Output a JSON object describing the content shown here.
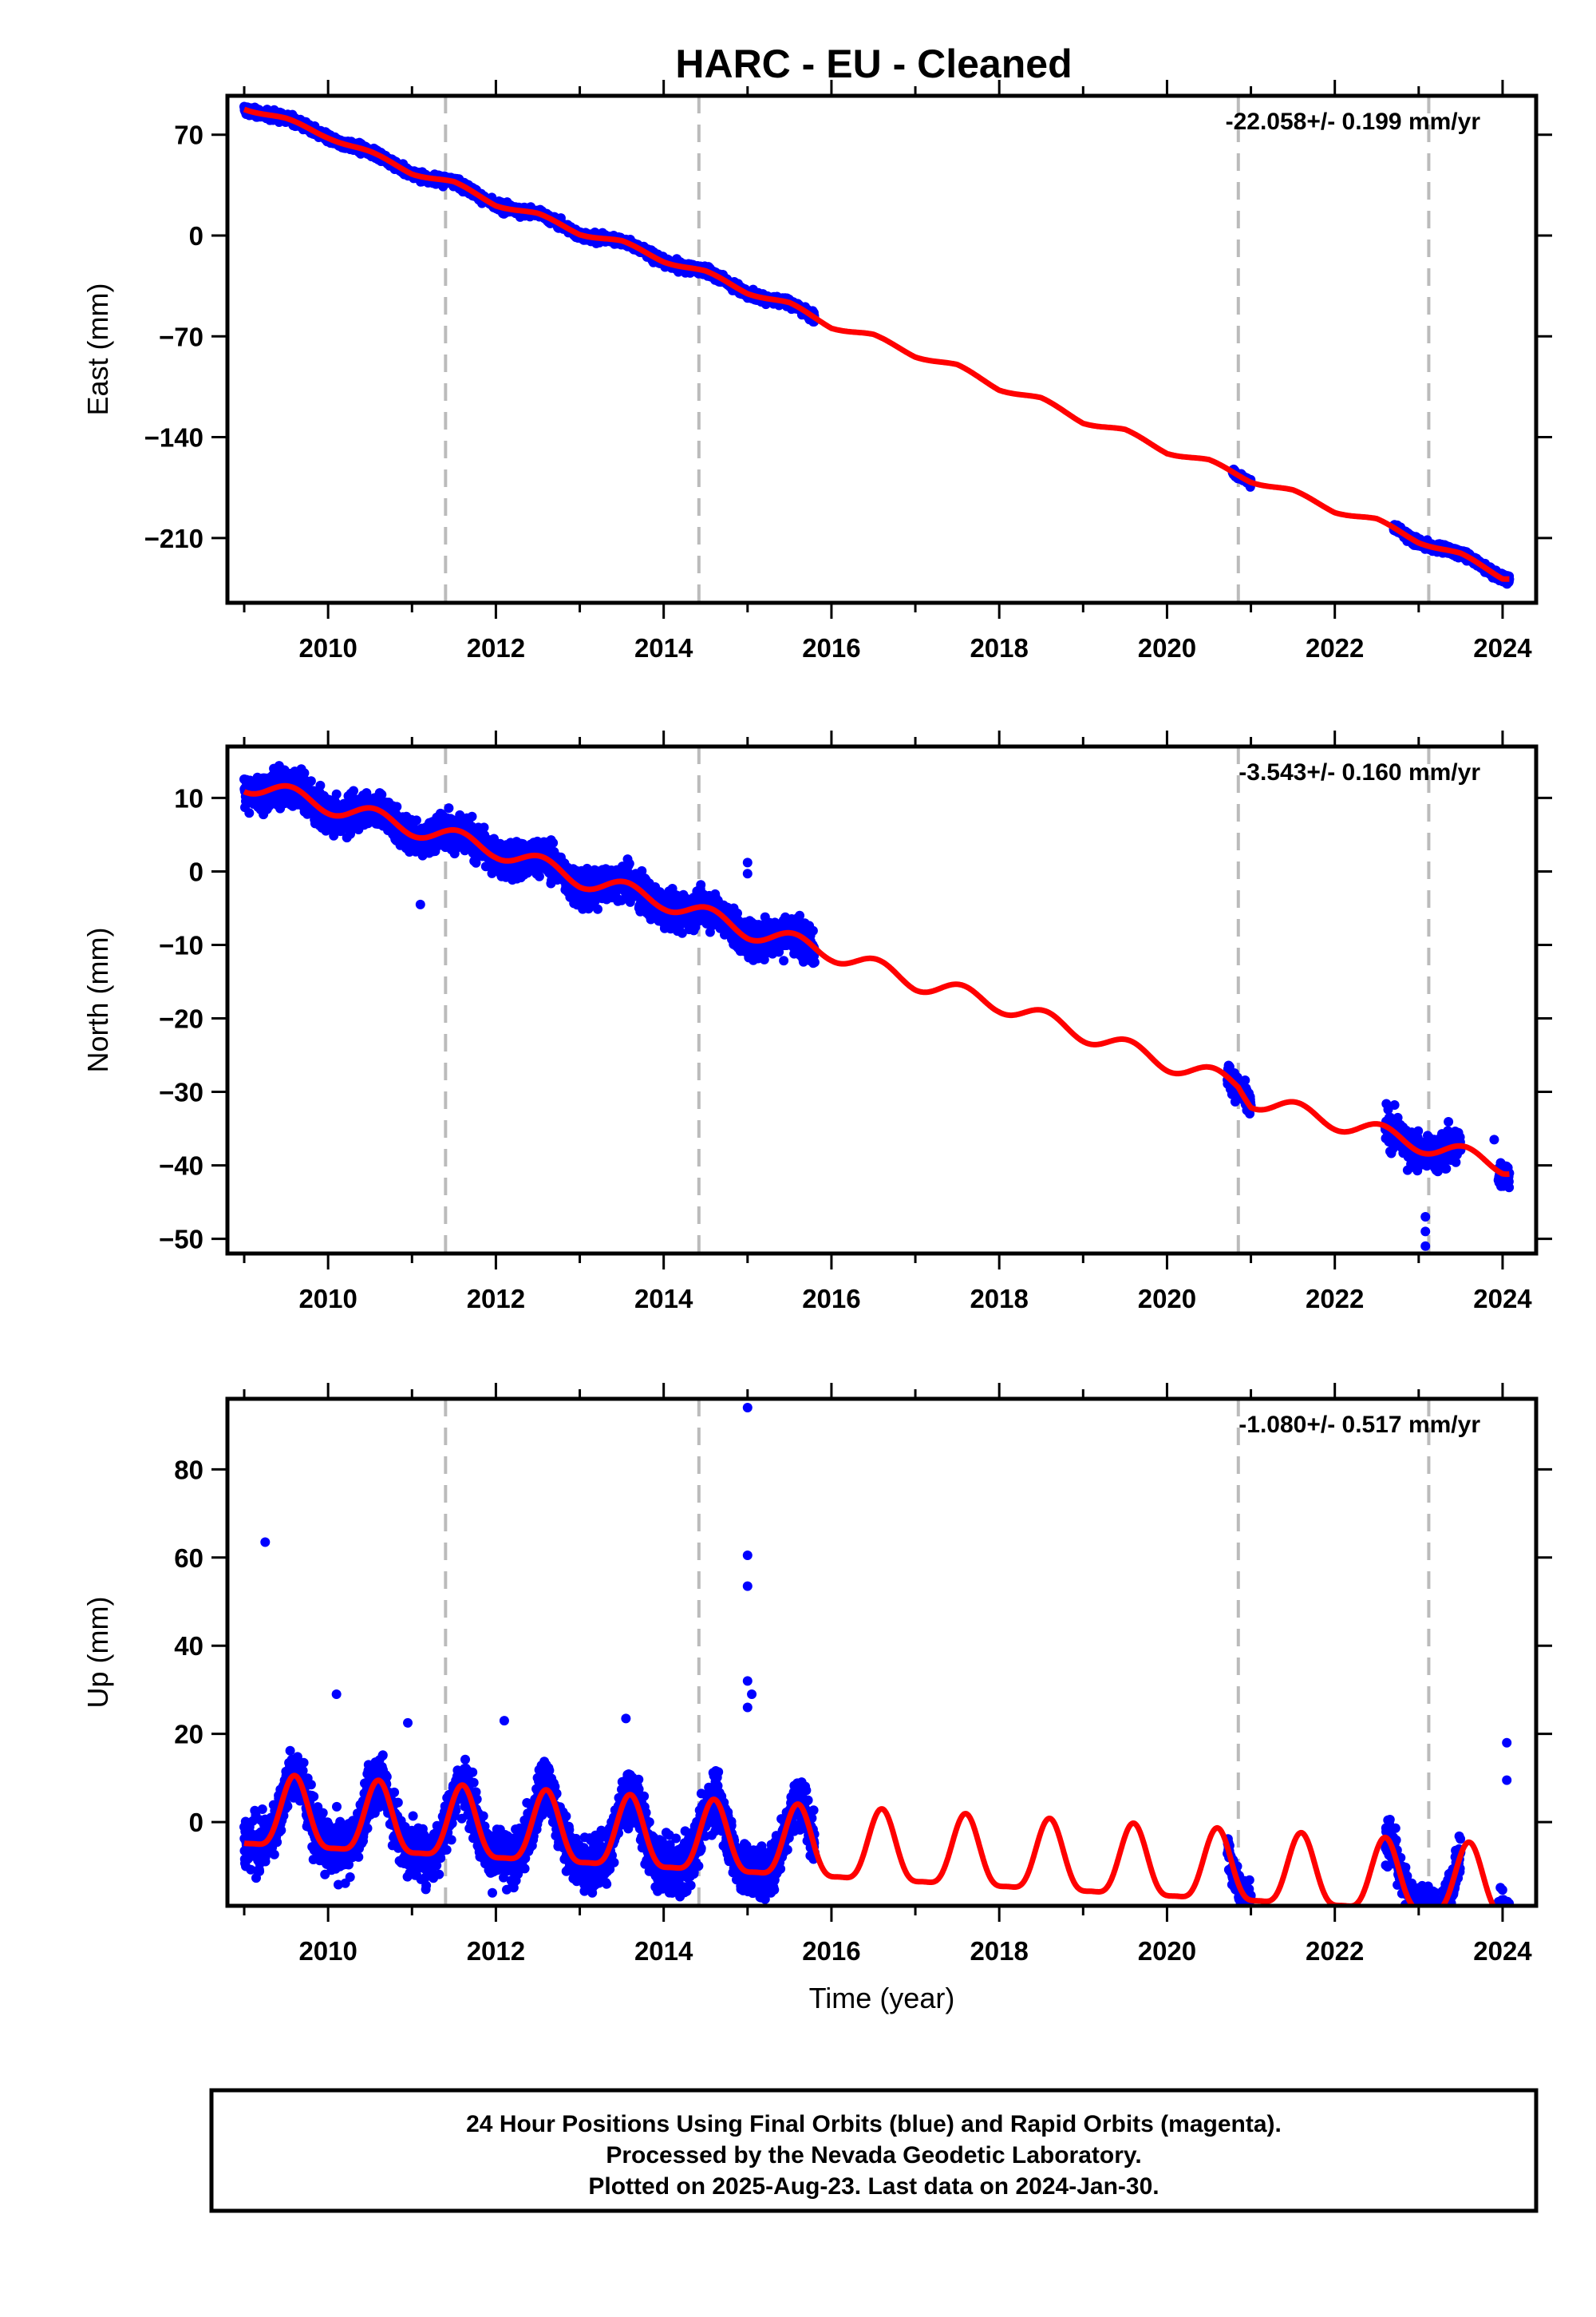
{
  "title": "HARC  - EU - Cleaned",
  "colors": {
    "points": "#0000ff",
    "model": "#ff0000",
    "breaks": "#bbbbbb",
    "frame": "#000000"
  },
  "chart_data": [
    {
      "type": "scatter",
      "name": "east",
      "ylabel": "East (mm)",
      "xlabel": "",
      "rate_label": "-22.058+/- 0.199 mm/yr",
      "rate": -22.058,
      "amp": 1.5,
      "xlim": [
        2008.8,
        2024.4
      ],
      "ylim": [
        -255,
        97
      ],
      "yticks": [
        70,
        0,
        -70,
        -140,
        -210
      ],
      "ytick_labels": [
        "70",
        "0",
        "−70",
        "−140",
        "−210"
      ],
      "xticks": [
        2010,
        2012,
        2014,
        2016,
        2018,
        2020,
        2022,
        2024
      ],
      "xtick_labels": [
        "2010",
        "2012",
        "2014",
        "2016",
        "2018",
        "2020",
        "2022",
        "2024"
      ],
      "breaks": [
        2011.4,
        2014.42,
        2020.85,
        2023.12
      ],
      "model": [
        [
          2009.0,
          89
        ],
        [
          2009.5,
          80
        ],
        [
          2010.0,
          69
        ],
        [
          2010.5,
          57
        ],
        [
          2011.0,
          44
        ],
        [
          2011.5,
          36
        ],
        [
          2012.0,
          22
        ],
        [
          2012.5,
          14
        ],
        [
          2013.0,
          2
        ],
        [
          2013.5,
          -5
        ],
        [
          2014.0,
          -17
        ],
        [
          2014.5,
          -26
        ],
        [
          2015.0,
          -39
        ],
        [
          2015.5,
          -48
        ],
        [
          2016.0,
          -63
        ],
        [
          2016.5,
          -70
        ],
        [
          2017.0,
          -83
        ],
        [
          2017.5,
          -91
        ],
        [
          2018.0,
          -106
        ],
        [
          2018.5,
          -114
        ],
        [
          2019.0,
          -129
        ],
        [
          2019.5,
          -136
        ],
        [
          2020.0,
          -150
        ],
        [
          2020.5,
          -157
        ],
        [
          2021.0,
          -170
        ],
        [
          2021.5,
          -178
        ],
        [
          2022.0,
          -191
        ],
        [
          2022.5,
          -198
        ],
        [
          2023.0,
          -212
        ],
        [
          2023.5,
          -222
        ],
        [
          2024.0,
          -237
        ]
      ],
      "data_segments": [
        [
          2009.0,
          2015.8,
          2.5
        ],
        [
          2020.78,
          2021.0,
          2.0
        ],
        [
          2022.7,
          2024.08,
          2.5
        ]
      ],
      "outliers": []
    },
    {
      "type": "scatter",
      "name": "north",
      "ylabel": "North (mm)",
      "xlabel": "",
      "rate_label": "-3.543+/- 0.160 mm/yr",
      "rate": -3.543,
      "amp": 1.2,
      "xlim": [
        2008.8,
        2024.4
      ],
      "ylim": [
        -52,
        17
      ],
      "yticks": [
        10,
        0,
        -10,
        -20,
        -30,
        -40,
        -50
      ],
      "ytick_labels": [
        "10",
        "0",
        "−10",
        "−20",
        "−30",
        "−40",
        "−50"
      ],
      "xticks": [
        2010,
        2012,
        2014,
        2016,
        2018,
        2020,
        2022,
        2024
      ],
      "xtick_labels": [
        "2010",
        "2012",
        "2014",
        "2016",
        "2018",
        "2020",
        "2022",
        "2024"
      ],
      "breaks": [
        2011.4,
        2014.42,
        2020.85,
        2023.12
      ],
      "model": [
        [
          2009.0,
          12
        ],
        [
          2010.0,
          9
        ],
        [
          2011.0,
          6
        ],
        [
          2012.0,
          3
        ],
        [
          2013.0,
          -1
        ],
        [
          2014.0,
          -4
        ],
        [
          2015.0,
          -8
        ],
        [
          2016.0,
          -11
        ],
        [
          2017.0,
          -15
        ],
        [
          2018.0,
          -18
        ],
        [
          2019.0,
          -22
        ],
        [
          2020.0,
          -26
        ],
        [
          2020.85,
          -29
        ],
        [
          2021.0,
          -31
        ],
        [
          2022.0,
          -34
        ],
        [
          2023.0,
          -37
        ],
        [
          2024.0,
          -40
        ]
      ],
      "data_segments": [
        [
          2009.0,
          2015.8,
          2.0
        ],
        [
          2020.72,
          2021.0,
          1.5
        ],
        [
          2022.6,
          2023.5,
          2.0
        ],
        [
          2023.95,
          2024.08,
          1.5
        ]
      ],
      "outliers": [
        [
          2015.0,
          1.2
        ],
        [
          2015.0,
          -0.3
        ],
        [
          2023.08,
          -51
        ],
        [
          2023.08,
          -49
        ],
        [
          2023.08,
          -47
        ],
        [
          2023.9,
          -36.5
        ],
        [
          2011.1,
          -4.5
        ]
      ]
    },
    {
      "type": "scatter",
      "name": "up",
      "ylabel": "Up (mm)",
      "xlabel": "Time (year)",
      "rate_label": "-1.080+/- 0.517 mm/yr",
      "rate": -1.08,
      "amp": 8,
      "xlim": [
        2008.8,
        2024.4
      ],
      "ylim": [
        -19,
        96
      ],
      "yticks": [
        80,
        60,
        40,
        20,
        0
      ],
      "ytick_labels": [
        "80",
        "60",
        "40",
        "20",
        "0"
      ],
      "xticks": [
        2010,
        2012,
        2014,
        2016,
        2018,
        2020,
        2022,
        2024
      ],
      "xtick_labels": [
        "2010",
        "2012",
        "2014",
        "2016",
        "2018",
        "2020",
        "2022",
        "2024"
      ],
      "breaks": [
        2011.4,
        2014.42,
        2020.85,
        2023.12
      ],
      "model": [],
      "data_segments": [
        [
          2009.0,
          2015.8,
          5.0
        ],
        [
          2020.72,
          2021.0,
          3.0
        ],
        [
          2022.6,
          2023.5,
          4.5
        ],
        [
          2023.95,
          2024.08,
          4.0
        ]
      ],
      "outliers": [
        [
          2009.25,
          63.5
        ],
        [
          2015.0,
          94
        ],
        [
          2015.0,
          60.5
        ],
        [
          2015.0,
          53.5
        ],
        [
          2015.0,
          32
        ],
        [
          2015.05,
          29
        ],
        [
          2015.0,
          26
        ],
        [
          2010.1,
          29
        ],
        [
          2010.95,
          22.5
        ],
        [
          2013.55,
          23.5
        ],
        [
          2012.1,
          23
        ],
        [
          2024.05,
          18
        ],
        [
          2024.05,
          9.5
        ]
      ]
    }
  ],
  "footer": {
    "line1": "24 Hour Positions Using Final Orbits (blue) and Rapid Orbits (magenta).",
    "line2": "Processed by the Nevada Geodetic Laboratory.",
    "line3": "Plotted on 2025-Aug-23. Last data on 2024-Jan-30."
  }
}
